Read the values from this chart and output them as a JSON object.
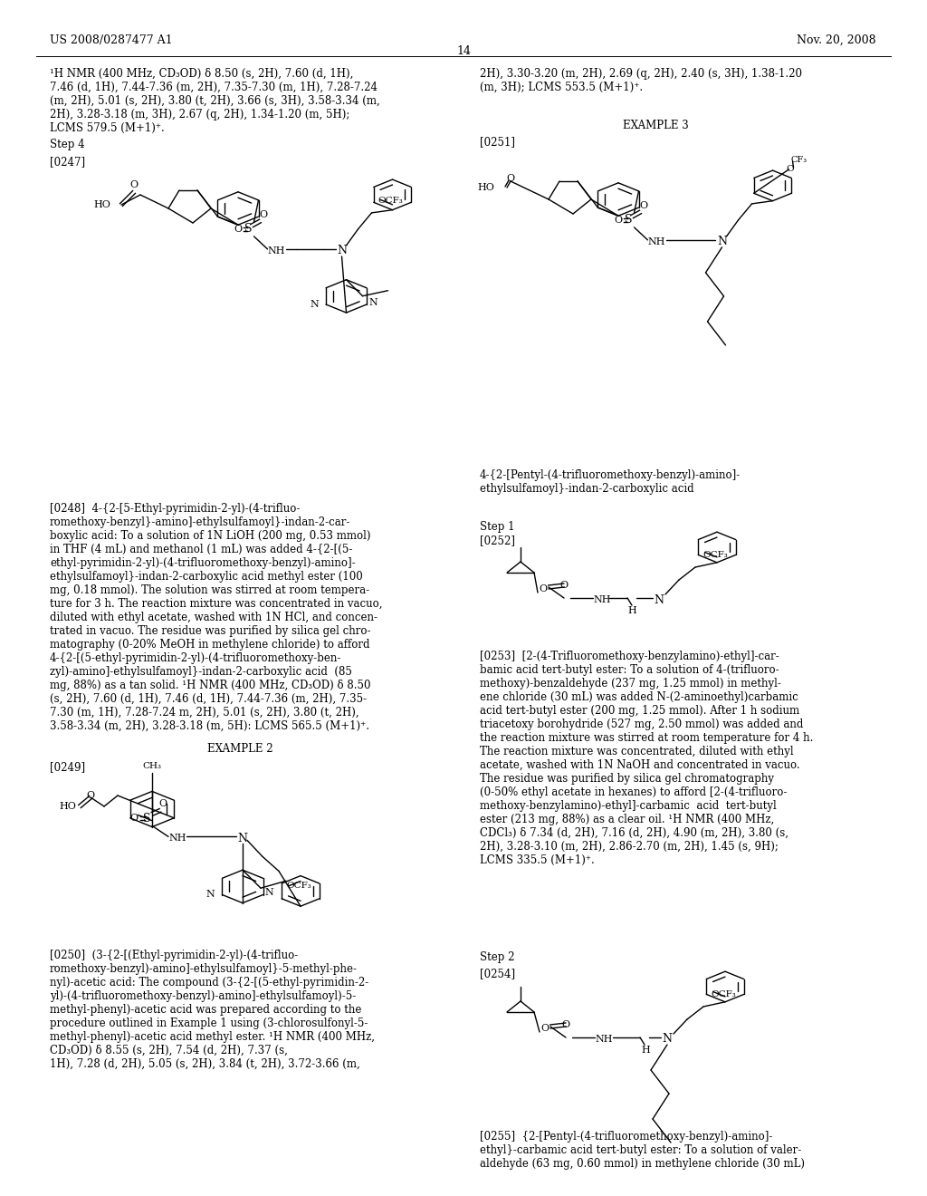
{
  "header_left": "US 2008/0287477 A1",
  "header_right": "Nov. 20, 2008",
  "page_number": "14",
  "bg_color": "#ffffff"
}
